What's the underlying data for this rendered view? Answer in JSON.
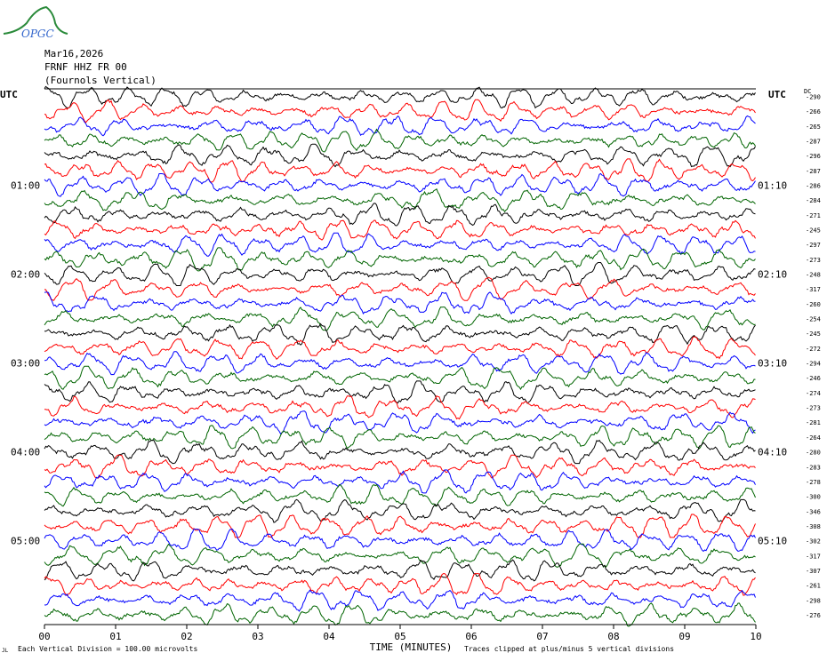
{
  "header": {
    "date": "Mar16,2026",
    "station": "FRNF HHZ FR 00",
    "description": "(Fournols Vertical)"
  },
  "logo": {
    "text": "OPGC",
    "color": "#2a8a3a"
  },
  "colors": {
    "trace_cycle": [
      "#000000",
      "#ff0000",
      "#0000ff",
      "#006400"
    ]
  },
  "footer": {
    "scale_note": "Each Vertical Division =  100.00 microvolts",
    "clip_note": "Traces clipped at plus/minus 5 vertical divisions",
    "corner_mark": "JL"
  },
  "chart_data": {
    "type": "line",
    "title": "",
    "xlabel": "TIME (MINUTES)",
    "x_ticks": [
      "00",
      "01",
      "02",
      "03",
      "04",
      "05",
      "06",
      "07",
      "08",
      "09",
      "10"
    ],
    "xlim": [
      0,
      10
    ],
    "left_axis_label": "UTC",
    "right_axis_label": "UTC",
    "dc_label": "DC",
    "left_time_labels": [
      "01:00",
      "02:00",
      "03:00",
      "04:00",
      "05:00"
    ],
    "right_time_labels": [
      "01:10",
      "02:10",
      "03:10",
      "04:10",
      "05:10"
    ],
    "dc_offsets": [
      -290,
      -266,
      -265,
      -287,
      -296,
      -287,
      -286,
      -284,
      -271,
      -245,
      -297,
      -273,
      -248,
      -317,
      -260,
      -254,
      -245,
      -272,
      -294,
      -246,
      -274,
      -273,
      -281,
      -264,
      -280,
      -283,
      -278,
      -300,
      -346,
      -308,
      -302,
      -317,
      -307,
      -261,
      -298,
      -276
    ],
    "trace_count": 36,
    "trace_interval_minutes": 10,
    "clip_divisions": 5,
    "grid": false
  }
}
